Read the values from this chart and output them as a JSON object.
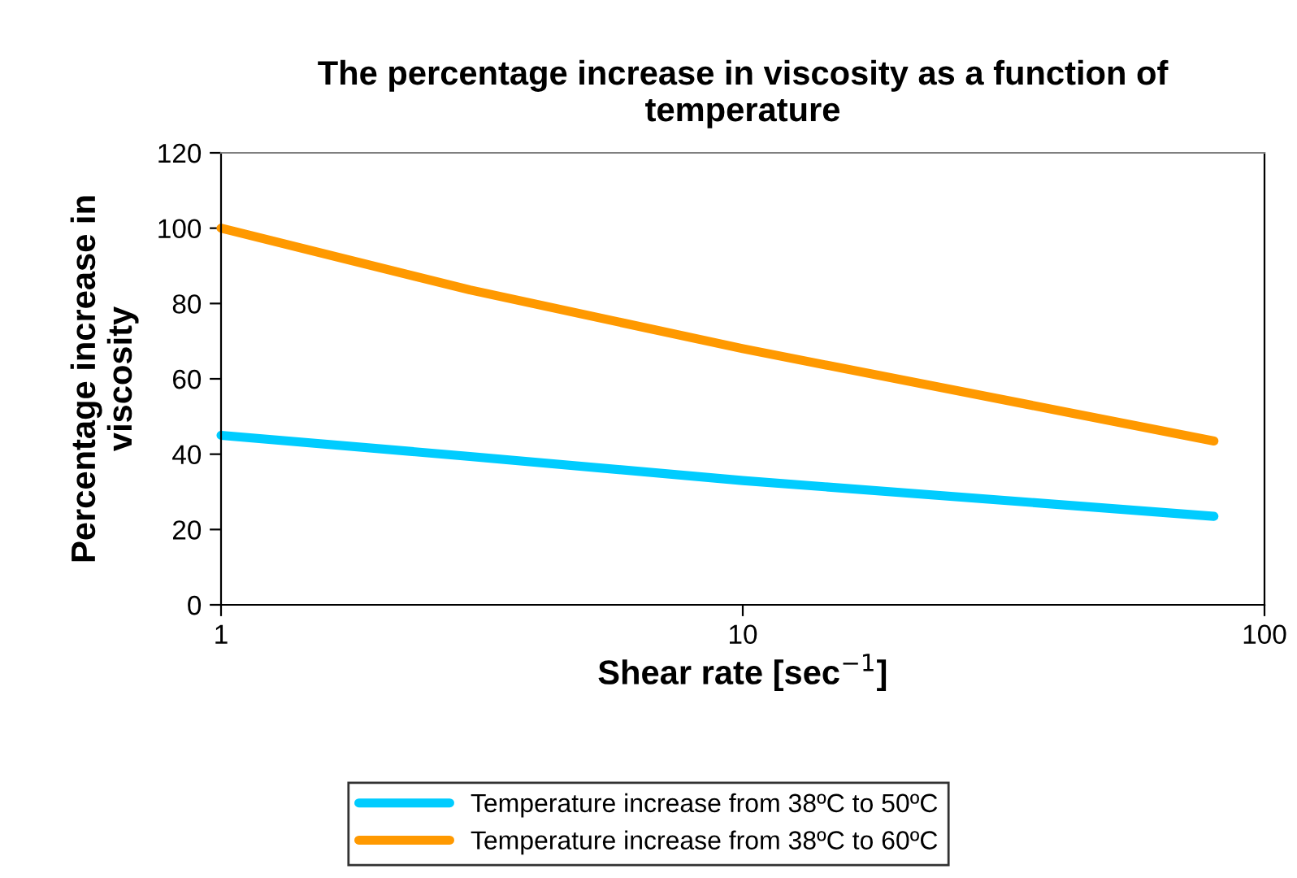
{
  "chart_data": {
    "type": "line",
    "title": "The percentage increase in viscosity as a function of\ntemperature",
    "xlabel": "Shear rate [sec$^{−1}$]",
    "ylabel": "Percentage increase in\nviscosity",
    "x": [
      1,
      3,
      10,
      80
    ],
    "series": [
      {
        "name": "Temperature increase from 38ºC to 50ºC",
        "color": "#00ccff",
        "values": [
          45,
          39.4,
          33,
          23.5
        ]
      },
      {
        "name": "Temperature increase from 38ºC to 60ºC",
        "color": "#ff9900",
        "values": [
          100,
          83.6,
          68,
          43.5
        ]
      }
    ],
    "log": "x",
    "xlim": [
      1,
      100
    ],
    "xticks": [
      1,
      10,
      100
    ],
    "ylim": [
      0,
      120
    ],
    "yticks": [
      0,
      20,
      40,
      60,
      80,
      100,
      120
    ],
    "grid": false,
    "legend": "bottom",
    "marker": "none",
    "line_style": "solid"
  }
}
